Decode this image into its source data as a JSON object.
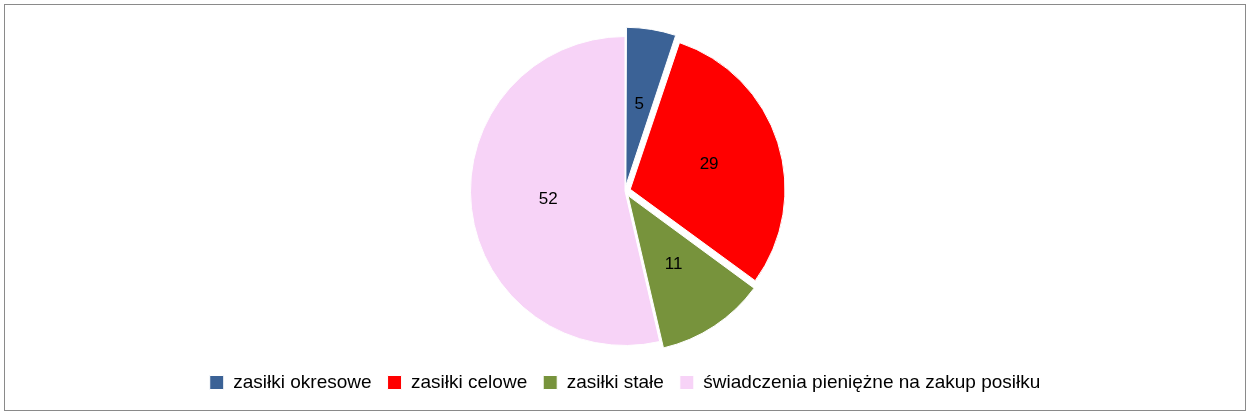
{
  "chart_data": {
    "type": "pie",
    "categories": [
      "zasiłki okresowe",
      "zasiłki celowe",
      "zasiłki stałe",
      "świadczenia pieniężne na zakup posiłku"
    ],
    "values": [
      5,
      29,
      11,
      52
    ],
    "colors": [
      "#3b6296",
      "#ff0000",
      "#77933c",
      "#f7d3f7"
    ],
    "data_labels": true,
    "legend": "bottom"
  }
}
